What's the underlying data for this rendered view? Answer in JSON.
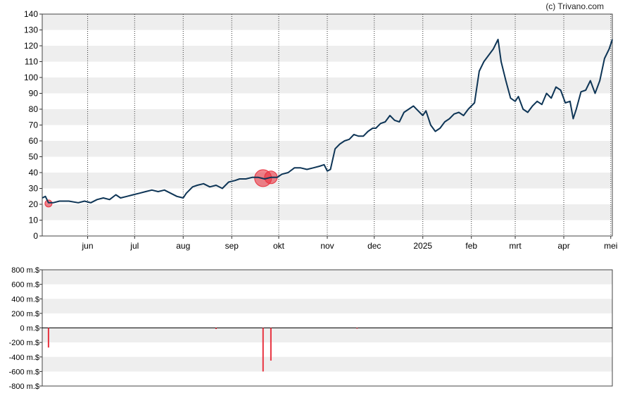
{
  "credit": "(c) Trivano.com",
  "colors": {
    "price_line": "#0e3556",
    "marker": "#e8323f",
    "band": "#eeeeee",
    "bar": "#e8323f"
  },
  "chart_data": [
    {
      "type": "line",
      "title": "",
      "xlabel": "",
      "ylabel": "",
      "ylim": [
        0,
        140
      ],
      "yticks": [
        "0",
        "10",
        "20",
        "30",
        "40",
        "50",
        "60",
        "70",
        "80",
        "90",
        "100",
        "110",
        "120",
        "130",
        "140"
      ],
      "xlim": [
        "2024-05-03",
        "2025-05-02"
      ],
      "xticks": [
        {
          "label": "jun",
          "date": "2024-06-01"
        },
        {
          "label": "jul",
          "date": "2024-07-01"
        },
        {
          "label": "aug",
          "date": "2024-08-01"
        },
        {
          "label": "sep",
          "date": "2024-09-01"
        },
        {
          "label": "okt",
          "date": "2024-10-01"
        },
        {
          "label": "nov",
          "date": "2024-11-01"
        },
        {
          "label": "dec",
          "date": "2024-12-01"
        },
        {
          "label": "2025",
          "date": "2025-01-01"
        },
        {
          "label": "feb",
          "date": "2025-02-01"
        },
        {
          "label": "mrt",
          "date": "2025-03-01"
        },
        {
          "label": "apr",
          "date": "2025-04-01"
        },
        {
          "label": "mei",
          "date": "2025-05-01"
        }
      ],
      "grid": "horizontal bands, dotted vertical month lines",
      "series": [
        {
          "x": [
            "2024-05-03",
            "2024-05-05",
            "2024-05-07",
            "2024-05-10",
            "2024-05-14",
            "2024-05-20",
            "2024-05-26",
            "2024-05-30",
            "2024-06-03",
            "2024-06-07",
            "2024-06-11",
            "2024-06-15",
            "2024-06-19",
            "2024-06-22",
            "2024-06-26",
            "2024-06-30",
            "2024-07-04",
            "2024-07-08",
            "2024-07-12",
            "2024-07-16",
            "2024-07-20",
            "2024-07-24",
            "2024-07-28",
            "2024-08-01",
            "2024-08-03",
            "2024-08-05",
            "2024-08-07",
            "2024-08-10",
            "2024-08-14",
            "2024-08-18",
            "2024-08-22",
            "2024-08-26",
            "2024-08-30",
            "2024-09-03",
            "2024-09-06",
            "2024-09-10",
            "2024-09-14",
            "2024-09-18",
            "2024-09-22",
            "2024-09-26",
            "2024-09-30",
            "2024-10-03",
            "2024-10-07",
            "2024-10-11",
            "2024-10-15",
            "2024-10-19",
            "2024-10-23",
            "2024-10-27",
            "2024-10-30",
            "2024-11-01",
            "2024-11-03",
            "2024-11-06",
            "2024-11-09",
            "2024-11-12",
            "2024-11-15",
            "2024-11-18",
            "2024-11-21",
            "2024-11-24",
            "2024-11-27",
            "2024-11-30",
            "2024-12-02",
            "2024-12-05",
            "2024-12-08",
            "2024-12-11",
            "2024-12-14",
            "2024-12-17",
            "2024-12-20",
            "2024-12-23",
            "2024-12-26",
            "2024-12-29",
            "2025-01-01",
            "2025-01-03",
            "2025-01-06",
            "2025-01-09",
            "2025-01-12",
            "2025-01-15",
            "2025-01-18",
            "2025-01-21",
            "2025-01-24",
            "2025-01-27",
            "2025-01-30",
            "2025-02-01",
            "2025-02-03",
            "2025-02-06",
            "2025-02-09",
            "2025-02-12",
            "2025-02-15",
            "2025-02-18",
            "2025-02-20",
            "2025-02-23",
            "2025-02-26",
            "2025-03-01",
            "2025-03-03",
            "2025-03-06",
            "2025-03-09",
            "2025-03-12",
            "2025-03-15",
            "2025-03-18",
            "2025-03-21",
            "2025-03-24",
            "2025-03-27",
            "2025-03-30",
            "2025-04-02",
            "2025-04-05",
            "2025-04-07",
            "2025-04-09",
            "2025-04-12",
            "2025-04-15",
            "2025-04-18",
            "2025-04-21",
            "2025-04-24",
            "2025-04-27",
            "2025-04-30",
            "2025-05-02"
          ],
          "y": [
            24,
            25,
            21,
            21,
            22,
            22,
            21,
            22,
            21,
            23,
            24,
            23,
            26,
            24,
            25,
            26,
            27,
            28,
            29,
            28,
            29,
            27,
            25,
            24,
            27,
            29,
            31,
            32,
            33,
            31,
            32,
            30,
            34,
            35,
            36,
            36,
            37,
            37,
            36,
            37,
            37,
            39,
            40,
            43,
            43,
            42,
            43,
            44,
            45,
            41,
            42,
            55,
            58,
            60,
            61,
            64,
            63,
            63,
            66,
            68,
            68,
            71,
            72,
            76,
            73,
            72,
            78,
            80,
            82,
            79,
            76,
            79,
            70,
            66,
            68,
            72,
            74,
            77,
            78,
            76,
            80,
            82,
            84,
            104,
            110,
            114,
            118,
            124,
            110,
            98,
            87,
            85,
            88,
            80,
            78,
            82,
            85,
            83,
            90,
            87,
            94,
            92,
            84,
            85,
            74,
            80,
            91,
            92,
            98,
            90,
            98,
            112,
            118,
            124
          ]
        }
      ],
      "markers": [
        {
          "x": "2024-05-07",
          "y": 20.5,
          "size": "small"
        },
        {
          "x": "2024-09-21",
          "y": 36.5,
          "size": "large"
        },
        {
          "x": "2024-09-26",
          "y": 37,
          "size": "medium"
        }
      ]
    },
    {
      "type": "bar",
      "title": "",
      "xlabel": "",
      "ylabel": "",
      "ylim": [
        -800,
        800
      ],
      "yticks": [
        "800 m.$",
        "600 m.$",
        "400 m.$",
        "200 m.$",
        "0 m.$",
        "-200 m.$",
        "-400 m.$",
        "-600 m.$",
        "-800 m.$"
      ],
      "grid": "horizontal bands",
      "x": [
        "2024-05-07",
        "2024-08-22",
        "2024-09-21",
        "2024-09-26",
        "2024-11-20"
      ],
      "values": [
        -270,
        -15,
        -600,
        -450,
        -8
      ]
    }
  ]
}
